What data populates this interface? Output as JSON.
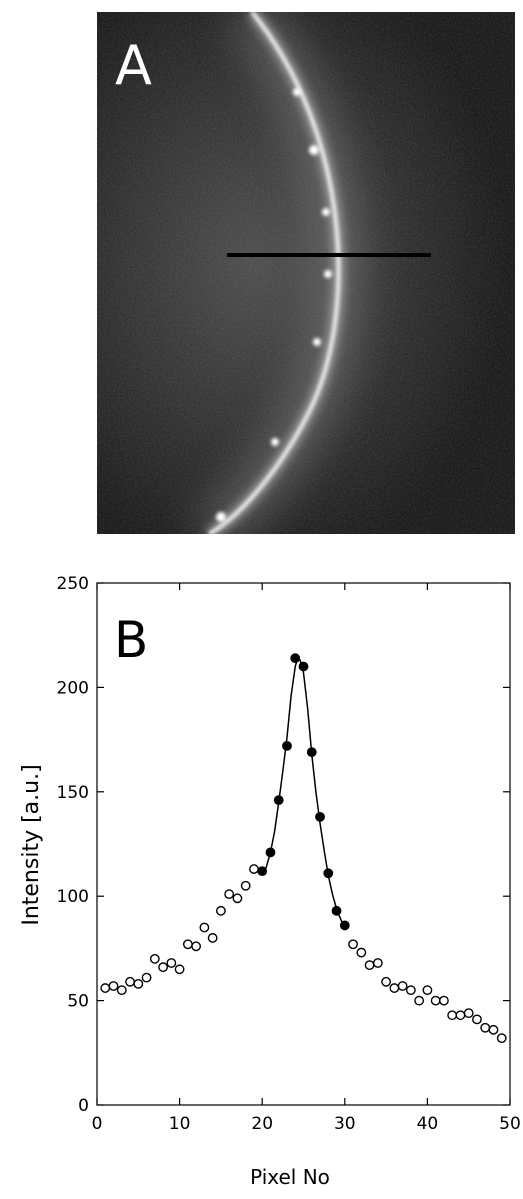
{
  "panel_a": {
    "label": "A",
    "colors": {
      "background": "#161616",
      "filament": "#e8e8e8",
      "line": "#000000",
      "label": "#ffffff"
    }
  },
  "chart_data": {
    "type": "scatter",
    "panel_label": "B",
    "title": "",
    "xlabel": "Pixel No",
    "ylabel": "Intensity [a.u.]",
    "xlim": [
      0,
      50
    ],
    "ylim": [
      0,
      250
    ],
    "xticks": [
      0,
      10,
      20,
      30,
      40,
      50
    ],
    "yticks": [
      0,
      50,
      100,
      150,
      200,
      250
    ],
    "grid": false,
    "series": [
      {
        "marker": "open-circle",
        "x": [
          1,
          2,
          3,
          4,
          5,
          6,
          7,
          8,
          9,
          10,
          11,
          12,
          13,
          14,
          15,
          16,
          17,
          18,
          19,
          31,
          32,
          33,
          34,
          35,
          36,
          37,
          38,
          39,
          40,
          41,
          42,
          43,
          44,
          45,
          46,
          47,
          48,
          49
        ],
        "y": [
          56,
          57,
          55,
          59,
          58,
          61,
          70,
          66,
          68,
          65,
          77,
          76,
          85,
          80,
          93,
          101,
          99,
          105,
          113,
          77,
          73,
          67,
          68,
          59,
          56,
          57,
          55,
          50,
          55,
          50,
          50,
          43,
          43,
          44,
          41,
          37,
          36,
          32
        ]
      },
      {
        "marker": "filled-circle",
        "x": [
          20,
          21,
          22,
          23,
          24,
          25,
          26,
          27,
          28,
          29,
          30
        ],
        "y": [
          112,
          121,
          146,
          172,
          214,
          210,
          169,
          138,
          111,
          93,
          86
        ]
      }
    ],
    "fit": {
      "type": "line",
      "x": [
        20,
        20.5,
        21,
        21.5,
        22,
        22.5,
        23,
        23.5,
        24,
        24.3,
        24.6,
        25,
        25.5,
        26,
        26.5,
        27,
        27.5,
        28,
        28.5,
        29,
        29.5,
        30
      ],
      "y": [
        110,
        114,
        121,
        131,
        145,
        160,
        176,
        196,
        210,
        214,
        213,
        207,
        190,
        168,
        150,
        135,
        122,
        110,
        101,
        94,
        89,
        85
      ]
    }
  }
}
